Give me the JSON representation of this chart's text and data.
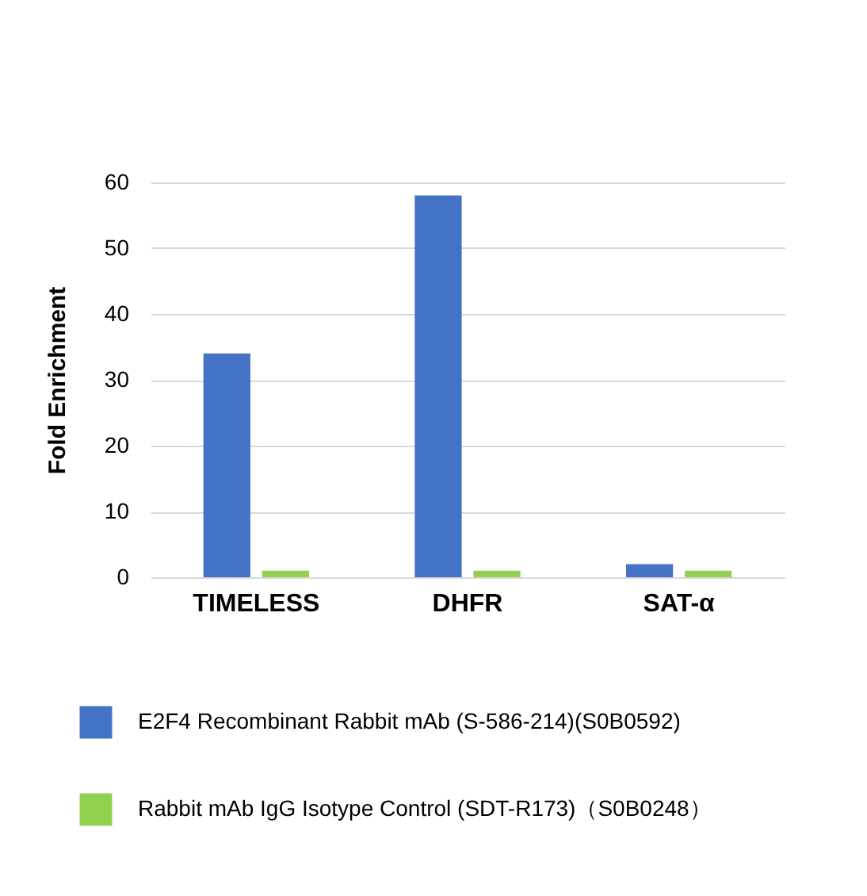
{
  "chart_data": {
    "type": "bar",
    "ylabel": "Fold Enrichment",
    "categories": [
      "TIMELESS",
      "DHFR",
      "SAT-α"
    ],
    "series": [
      {
        "name": "E2F4 Recombinant Rabbit mAb (S-586-214)(S0B0592)",
        "color": "#4472c4",
        "values": [
          34,
          58,
          2
        ]
      },
      {
        "name": "Rabbit mAb IgG Isotype Control (SDT-R173)（S0B0248）",
        "color": "#92d050",
        "values": [
          1,
          1,
          1
        ]
      }
    ],
    "ylim": [
      0,
      60
    ],
    "yticks": [
      0,
      10,
      20,
      30,
      40,
      50,
      60
    ],
    "grid": "y",
    "legend": "bottom"
  }
}
